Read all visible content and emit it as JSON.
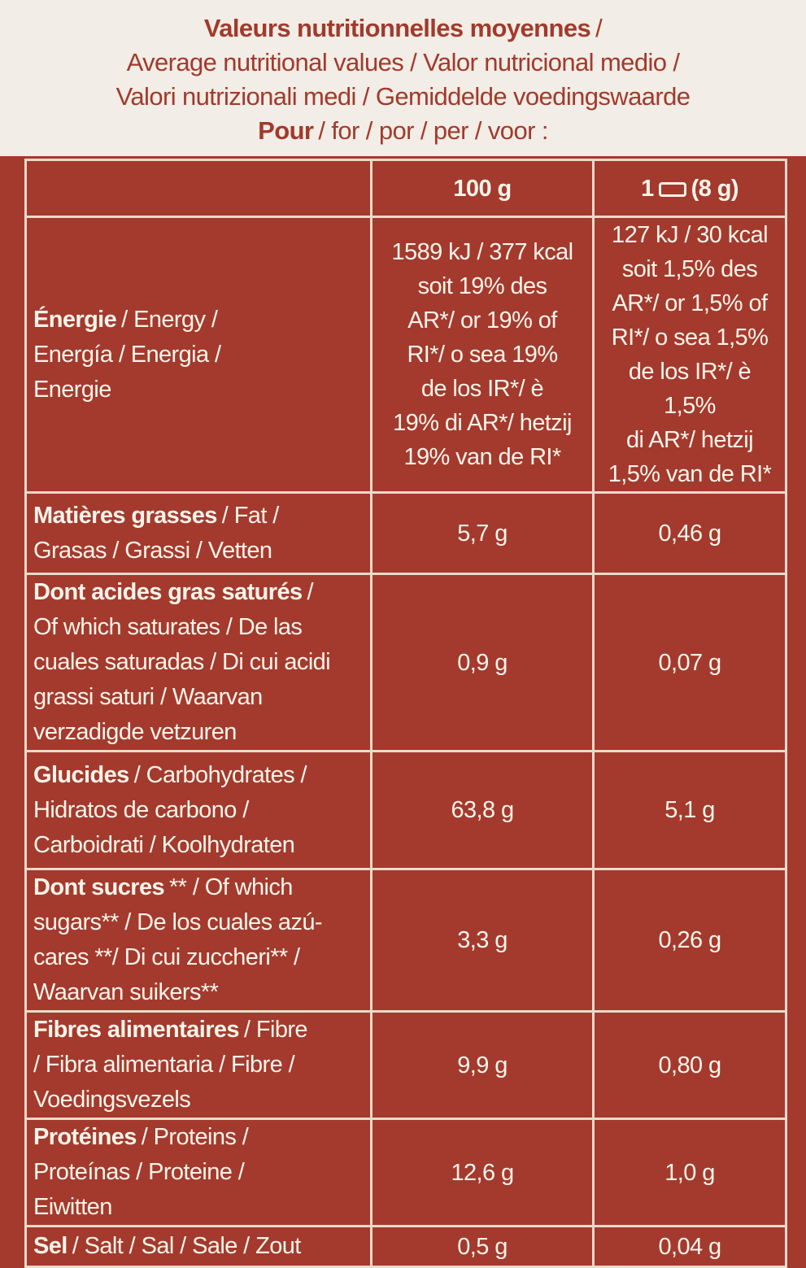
{
  "header": {
    "lines": [
      {
        "bold": "Valeurs nutritionnelles moyennes",
        "text": "/"
      },
      {
        "text": "Average nutritional values / Valor nutricional medio /"
      },
      {
        "text": "Valori nutrizionali medi / Gemiddelde voedingswaarde"
      },
      {
        "bold": "Pour",
        "text": "/ for / por / per / voor :"
      }
    ]
  },
  "table": {
    "columns": {
      "per_100g": "100 g",
      "portion_count": "1",
      "portion_size": "(8 g)"
    },
    "rows": [
      {
        "bold": "Énergie",
        "lines": [
          "/ Energy /",
          "Energía / Energia /",
          "Energie"
        ],
        "per_100g": [
          "1589 kJ / 377 kcal",
          "soit 19% des",
          "AR*/ or 19% of",
          "RI*/ o sea 19%",
          "de los IR*/ è",
          "19% di AR*/ hetzij",
          "19%  van de RI*"
        ],
        "per_portion": [
          "127 kJ / 30 kcal",
          "soit 1,5% des",
          "AR*/ or 1,5% of",
          "RI*/ o sea 1,5%",
          "de los IR*/ è 1,5%",
          "di AR*/ hetzij",
          "1,5% van de RI*"
        ]
      },
      {
        "bold": "Matières grasses",
        "lines": [
          "/ Fat /",
          "Grasas / Grassi / Vetten"
        ],
        "per_100g": [
          "5,7 g"
        ],
        "per_portion": [
          "0,46 g"
        ]
      },
      {
        "bold": "Dont acides gras saturés",
        "lines": [
          "/",
          "Of which saturates / De las",
          "cuales saturadas / Di cui acidi",
          "grassi saturi / Waarvan",
          "verzadigde vetzuren"
        ],
        "per_100g": [
          "0,9 g"
        ],
        "per_portion": [
          "0,07 g"
        ]
      },
      {
        "bold": "Glucides",
        "lines": [
          "/ Carbohydrates /",
          "Hidratos de carbono /",
          "Carboidrati / Koolhydraten"
        ],
        "per_100g": [
          "63,8 g"
        ],
        "per_portion": [
          "5,1 g"
        ]
      },
      {
        "bold": "Dont sucres",
        "lines": [
          "** / Of which",
          "sugars** / De los cuales azú-",
          "cares **/ Di cui zuccheri** /",
          "Waarvan suikers**"
        ],
        "per_100g": [
          "3,3 g"
        ],
        "per_portion": [
          "0,26 g"
        ]
      },
      {
        "bold": "Fibres alimentaires",
        "lines": [
          "/ Fibre",
          "/ Fibra alimentaria / Fibre /",
          "Voedingsvezels"
        ],
        "per_100g": [
          "9,9 g"
        ],
        "per_portion": [
          "0,80 g"
        ]
      },
      {
        "bold": "Protéines",
        "lines": [
          "/ Proteins /",
          "Proteínas / Proteine /",
          "Eiwitten"
        ],
        "per_100g": [
          "12,6 g"
        ],
        "per_portion": [
          "1,0 g"
        ]
      },
      {
        "bold": "Sel",
        "lines": [
          "/ Salt / Sal / Sale / Zout"
        ],
        "per_100g": [
          "0,5 g"
        ],
        "per_portion": [
          "0,04 g"
        ]
      }
    ]
  }
}
